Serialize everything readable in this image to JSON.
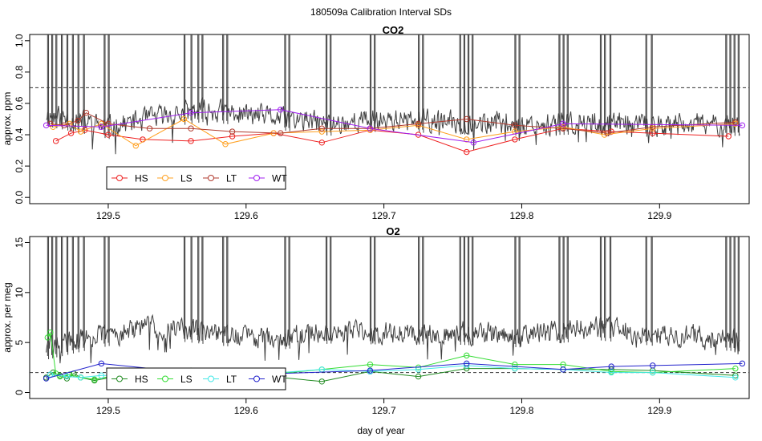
{
  "figure_title": "180509a   Calibration Interval SDs",
  "x_axis_label": "day of year",
  "colors": {
    "trace": "#404040",
    "ref_line": "#333333",
    "axis": "#000000"
  },
  "chart_data": [
    {
      "type": "line",
      "title": "CO2",
      "xlabel": "",
      "ylabel": "approx. ppm",
      "xlim": [
        129.443,
        129.965
      ],
      "ylim": [
        -0.04,
        1.04
      ],
      "x_ticks": [
        129.5,
        129.6,
        129.7,
        129.8,
        129.9
      ],
      "x_tick_labels": [
        "129.5",
        "129.6",
        "129.7",
        "129.8",
        "129.9"
      ],
      "y_ticks": [
        0.0,
        0.2,
        0.4,
        0.6,
        0.8,
        1.0
      ],
      "y_tick_labels": [
        "0.0",
        "0.2",
        "0.4",
        "0.6",
        "0.8",
        "1.0"
      ],
      "reference_line": 0.7,
      "trace": {
        "name": "CO2 residual",
        "baseline_segments": [
          {
            "x": 129.455,
            "y": 0.53
          },
          {
            "x": 129.5,
            "y": 0.45
          },
          {
            "x": 129.54,
            "y": 0.52
          },
          {
            "x": 129.57,
            "y": 0.56
          },
          {
            "x": 129.6,
            "y": 0.53
          },
          {
            "x": 129.64,
            "y": 0.49
          },
          {
            "x": 129.66,
            "y": 0.47
          },
          {
            "x": 129.7,
            "y": 0.5
          },
          {
            "x": 129.75,
            "y": 0.48
          },
          {
            "x": 129.8,
            "y": 0.47
          },
          {
            "x": 129.85,
            "y": 0.48
          },
          {
            "x": 129.9,
            "y": 0.46
          },
          {
            "x": 129.958,
            "y": 0.47
          }
        ],
        "noise_amplitude": 0.07,
        "spike_groups": [
          [
            129.456,
            129.459,
            129.462,
            129.466,
            129.47,
            129.474,
            129.478,
            129.482
          ],
          [
            129.497,
            129.5
          ],
          [
            129.555,
            129.56,
            129.565,
            129.568
          ],
          [
            129.583,
            129.586
          ],
          [
            129.628,
            129.631
          ],
          [
            129.658,
            129.661
          ],
          [
            129.69,
            129.693
          ],
          [
            129.725,
            129.728
          ],
          [
            129.755,
            129.758,
            129.761,
            129.764
          ],
          [
            129.795,
            129.798
          ],
          [
            129.827,
            129.83,
            129.833
          ],
          [
            129.857,
            129.86,
            129.864
          ],
          [
            129.89,
            129.894
          ],
          [
            129.948,
            129.951,
            129.954,
            129.957
          ]
        ]
      },
      "series": [
        {
          "name": "HS",
          "color": "#ee2222",
          "x": [
            129.462,
            129.473,
            129.483,
            129.5,
            129.525,
            129.56,
            129.59,
            129.62,
            129.655,
            129.69,
            129.725,
            129.76,
            129.795,
            129.83,
            129.865,
            129.895,
            129.95
          ],
          "y": [
            0.36,
            0.41,
            0.43,
            0.4,
            0.37,
            0.36,
            0.39,
            0.41,
            0.35,
            0.43,
            0.4,
            0.29,
            0.37,
            0.44,
            0.42,
            0.41,
            0.39
          ]
        },
        {
          "name": "LS",
          "color": "#ffa020",
          "x": [
            129.46,
            129.472,
            129.48,
            129.495,
            129.52,
            129.555,
            129.585,
            129.62,
            129.655,
            129.69,
            129.725,
            129.76,
            129.795,
            129.83,
            129.86,
            129.895,
            129.955
          ],
          "y": [
            0.45,
            0.47,
            0.42,
            0.47,
            0.33,
            0.5,
            0.34,
            0.41,
            0.42,
            0.43,
            0.46,
            0.37,
            0.42,
            0.45,
            0.4,
            0.44,
            0.47
          ]
        },
        {
          "name": "LT",
          "color": "#b03a2e",
          "x": [
            129.458,
            129.468,
            129.478,
            129.484,
            129.5,
            129.53,
            129.56,
            129.59,
            129.625,
            129.655,
            129.69,
            129.725,
            129.76,
            129.795,
            129.83,
            129.862,
            129.895,
            129.955
          ],
          "y": [
            0.47,
            0.46,
            0.49,
            0.54,
            0.47,
            0.44,
            0.44,
            0.42,
            0.41,
            0.44,
            0.44,
            0.47,
            0.5,
            0.46,
            0.44,
            0.41,
            0.45,
            0.48
          ]
        },
        {
          "name": "WT",
          "color": "#a020f0",
          "x": [
            129.455,
            129.495,
            129.56,
            129.625,
            129.69,
            129.765,
            129.83,
            129.96
          ],
          "y": [
            0.46,
            0.45,
            0.54,
            0.56,
            0.44,
            0.35,
            0.47,
            0.46
          ]
        }
      ],
      "legend": {
        "position": "bottom-left",
        "entries": [
          "HS",
          "LS",
          "LT",
          "WT"
        ]
      }
    },
    {
      "type": "line",
      "title": "O2",
      "xlabel": "day of year",
      "ylabel": "approx. per meg",
      "xlim": [
        129.443,
        129.965
      ],
      "ylim": [
        -0.6,
        15.6
      ],
      "x_ticks": [
        129.5,
        129.6,
        129.7,
        129.8,
        129.9
      ],
      "x_tick_labels": [
        "129.5",
        "129.6",
        "129.7",
        "129.8",
        "129.9"
      ],
      "y_ticks": [
        0,
        5,
        10,
        15
      ],
      "y_tick_labels": [
        "0",
        "5",
        "10",
        "15"
      ],
      "reference_line": 2,
      "trace": {
        "name": "O2 residual",
        "baseline_segments": [
          {
            "x": 129.455,
            "y": 4.5
          },
          {
            "x": 129.49,
            "y": 5.6
          },
          {
            "x": 129.53,
            "y": 6.6
          },
          {
            "x": 129.58,
            "y": 5.9
          },
          {
            "x": 129.62,
            "y": 5.4
          },
          {
            "x": 129.66,
            "y": 6.1
          },
          {
            "x": 129.7,
            "y": 6.0
          },
          {
            "x": 129.75,
            "y": 6.0
          },
          {
            "x": 129.8,
            "y": 5.7
          },
          {
            "x": 129.85,
            "y": 6.5
          },
          {
            "x": 129.9,
            "y": 5.8
          },
          {
            "x": 129.958,
            "y": 5.3
          }
        ],
        "noise_amplitude": 1.1,
        "spike_groups": [
          [
            129.456,
            129.459,
            129.462,
            129.466,
            129.47,
            129.474,
            129.478,
            129.482
          ],
          [
            129.497,
            129.5
          ],
          [
            129.555,
            129.56,
            129.565,
            129.568
          ],
          [
            129.583,
            129.586
          ],
          [
            129.628,
            129.631
          ],
          [
            129.658,
            129.661
          ],
          [
            129.69,
            129.693
          ],
          [
            129.725,
            129.728
          ],
          [
            129.755,
            129.758,
            129.761,
            129.764
          ],
          [
            129.795,
            129.798
          ],
          [
            129.827,
            129.83,
            129.833
          ],
          [
            129.857,
            129.86,
            129.864
          ],
          [
            129.89,
            129.894
          ],
          [
            129.948,
            129.951,
            129.954,
            129.957
          ]
        ]
      },
      "series": [
        {
          "name": "HS",
          "color": "#228b22",
          "x": [
            129.455,
            129.46,
            129.465,
            129.47,
            129.475,
            129.48,
            129.49,
            129.52,
            129.56,
            129.59,
            129.625,
            129.655,
            129.69,
            129.725,
            129.76,
            129.795,
            129.83,
            129.865,
            129.895,
            129.955
          ],
          "y": [
            1.5,
            2.0,
            1.7,
            1.4,
            1.9,
            1.5,
            1.2,
            2.0,
            2.2,
            1.8,
            1.5,
            1.1,
            2.1,
            1.6,
            2.4,
            2.4,
            2.3,
            2.3,
            2.2,
            1.7
          ]
        },
        {
          "name": "LS",
          "color": "#33dd33",
          "x": [
            129.456,
            129.458,
            129.462,
            129.465,
            129.472,
            129.48,
            129.49,
            129.52,
            129.555,
            129.59,
            129.625,
            129.655,
            129.69,
            129.725,
            129.76,
            129.795,
            129.83,
            129.865,
            129.895,
            129.955
          ],
          "y": [
            5.5,
            6.0,
            1.9,
            1.6,
            1.8,
            1.5,
            1.3,
            2.1,
            2.0,
            1.8,
            1.9,
            2.3,
            2.8,
            2.5,
            3.7,
            2.8,
            2.8,
            2.1,
            2.0,
            2.4
          ]
        },
        {
          "name": "LT",
          "color": "#44e8e8",
          "x": [
            129.458,
            129.47,
            129.48,
            129.495,
            129.52,
            129.555,
            129.59,
            129.625,
            129.655,
            129.69,
            129.725,
            129.76,
            129.795,
            129.83,
            129.865,
            129.895,
            129.955
          ],
          "y": [
            1.8,
            1.6,
            1.5,
            1.7,
            1.7,
            1.7,
            1.8,
            2.0,
            2.3,
            2.1,
            2.3,
            2.7,
            2.4,
            2.3,
            2.0,
            2.0,
            1.5
          ]
        },
        {
          "name": "WT",
          "color": "#2222cc",
          "x": [
            129.455,
            129.495,
            129.56,
            129.625,
            129.69,
            129.76,
            129.83,
            129.865,
            129.895,
            129.96
          ],
          "y": [
            1.4,
            2.9,
            2.0,
            1.9,
            2.2,
            2.9,
            2.3,
            2.6,
            2.7,
            2.9
          ]
        }
      ],
      "legend": {
        "position": "bottom-left",
        "entries": [
          "HS",
          "LS",
          "LT",
          "WT"
        ]
      }
    }
  ]
}
